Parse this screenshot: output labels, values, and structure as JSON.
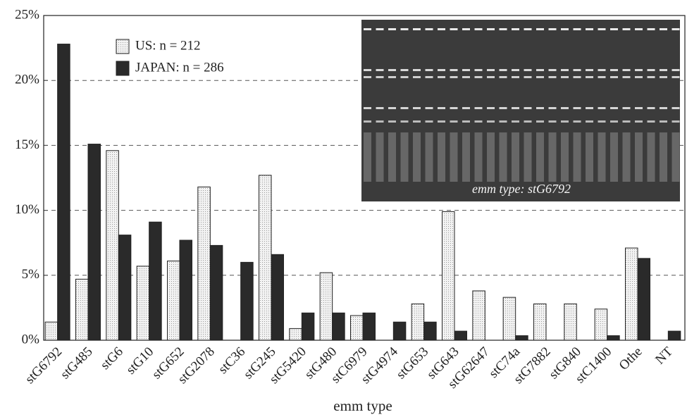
{
  "chart_data": {
    "type": "bar",
    "x_label": "emm type",
    "annotation": "emm type: stG6792",
    "categories": [
      "stG6792",
      "stG485",
      "stG6",
      "stG10",
      "stG652",
      "stG2078",
      "stC36",
      "stG245",
      "stG5420",
      "stG480",
      "stC6979",
      "stG4974",
      "stG653",
      "stG643",
      "stG62647",
      "stC74a",
      "stG7882",
      "stG840",
      "stC1400",
      "Othe",
      "NT"
    ],
    "series": [
      {
        "name": "US: n = 212",
        "color": "#e4e4e4",
        "values": [
          1.4,
          4.7,
          14.6,
          5.7,
          6.1,
          11.8,
          0,
          12.7,
          0.9,
          5.2,
          1.9,
          0,
          2.8,
          9.9,
          3.8,
          3.3,
          2.8,
          2.8,
          2.4,
          7.1,
          0
        ]
      },
      {
        "name": "JAPAN: n = 286",
        "color": "#2a2a2a",
        "values": [
          22.8,
          15.1,
          8.1,
          9.1,
          7.7,
          7.3,
          6.0,
          6.6,
          2.1,
          2.1,
          2.1,
          1.4,
          1.4,
          0.7,
          0,
          0.35,
          0,
          0,
          0.35,
          6.3,
          0.7
        ]
      }
    ],
    "ylim": [
      0,
      25
    ],
    "yticks": [
      {
        "value": 0,
        "label": "0%"
      },
      {
        "value": 5,
        "label": "5%"
      },
      {
        "value": 10,
        "label": "10%"
      },
      {
        "value": 15,
        "label": "15%"
      },
      {
        "value": 20,
        "label": "20%"
      },
      {
        "value": 25,
        "label": "25%"
      }
    ],
    "grid": true,
    "legend": "upper-left"
  }
}
